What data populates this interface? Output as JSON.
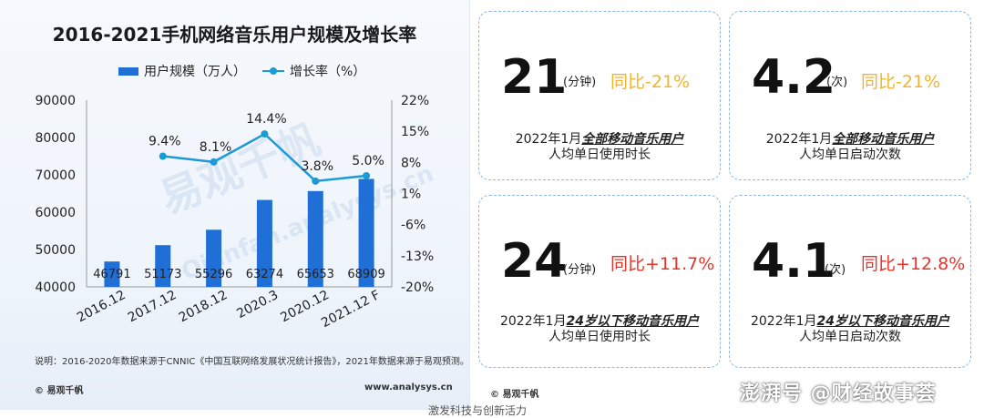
{
  "chart": {
    "title": "2016-2021手机网络音乐用户规模及增长率",
    "legend_bar": "用户规模（万人）",
    "legend_line": "增长率（%）",
    "note": "说明：2016-2020年数据来源于CNNIC《中国互联网络发展状况统计报告》，2021年数据来源于易观预测。",
    "brand": "© 易观千帆",
    "url": "www.analysys.cn"
  },
  "chart_data": {
    "type": "bar",
    "title": "2016-2021手机网络音乐用户规模及增长率",
    "categories": [
      "2016.12",
      "2017.12",
      "2018.12",
      "2020.3",
      "2020.12",
      "2021.12 F"
    ],
    "series": [
      {
        "name": "用户规模（万人）",
        "type": "bar",
        "axis": "left",
        "values": [
          46791,
          51173,
          55296,
          63274,
          65653,
          68909
        ]
      },
      {
        "name": "增长率（%）",
        "type": "line",
        "axis": "right",
        "values": [
          null,
          9.4,
          8.1,
          14.4,
          3.8,
          5.0
        ],
        "labels": [
          "",
          "9.4%",
          "8.1%",
          "14.4%",
          "3.8%",
          "5.0%"
        ]
      }
    ],
    "ylim_left": [
      40000,
      90000
    ],
    "yticks_left": [
      "40000",
      "50000",
      "60000",
      "70000",
      "80000",
      "90000"
    ],
    "ylim_right": [
      -20,
      22
    ],
    "yticks_right": [
      "-20%",
      "-13%",
      "-6%",
      "1%",
      "8%",
      "15%",
      "22%"
    ],
    "colors": {
      "bar": "#1f6fd6",
      "line": "#1a9ad6"
    }
  },
  "watermark": {
    "cn": "易观千帆",
    "en": "Qianfan.analysys.cn"
  },
  "cards": [
    {
      "value": "21",
      "unit": "(分钟)",
      "yoy": "同比-21%",
      "yoy_color": "#f2b42c",
      "line1_prefix": "2022年1月",
      "line1_em": "全部移动音乐用户",
      "line2": "人均单日使用时长"
    },
    {
      "value": "4.2",
      "unit": "(次)",
      "yoy": "同比-21%",
      "yoy_color": "#f2b42c",
      "line1_prefix": "2022年1月",
      "line1_em": "全部移动音乐用户",
      "line2": "人均单日启动次数"
    },
    {
      "value": "24",
      "unit": "(分钟)",
      "yoy": "同比+11.7%",
      "yoy_color": "#e6332a",
      "line1_prefix": "2022年1月",
      "line1_em": "24岁以下移动音乐用户",
      "line2": "人均单日使用时长"
    },
    {
      "value": "4.1",
      "unit": "(次)",
      "yoy": "同比+12.8%",
      "yoy_color": "#e6332a",
      "line1_prefix": "2022年1月",
      "line1_em": "24岁以下移动音乐用户",
      "line2": "人均单日启动次数"
    }
  ],
  "right_brand": "© 易观千帆",
  "footer": "澎湃号 @财经故事荟",
  "bottom_cut": "激发科技与创新活力"
}
